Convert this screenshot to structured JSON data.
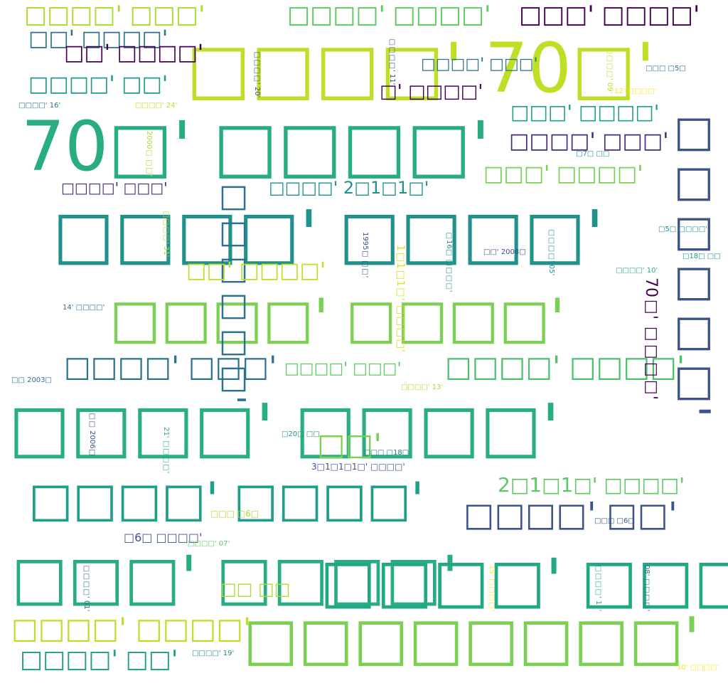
{
  "palette": {
    "background": "#ffffff",
    "colors": [
      "#440154",
      "#3b528b",
      "#21918c",
      "#2c728e",
      "#27ad81",
      "#5ec962",
      "#addc30",
      "#bddf26",
      "#fde725"
    ]
  },
  "words": [
    {
      "text": "□□□□' 70□'",
      "color": "#bddf26"
    },
    {
      "text": "70□' □□□□'",
      "color": "#27ad81"
    },
    {
      "text": "□□□□' □□□□'",
      "color": "#5ec962"
    },
    {
      "text": "□□□□□□□□'",
      "color": "#7ad151"
    },
    {
      "text": "□□□□' □□□□'",
      "color": "#21918c"
    },
    {
      "text": "□□□□' □□□□'",
      "color": "#28ae80"
    },
    {
      "text": "□□□□' □□□□'",
      "color": "#1f9e89"
    },
    {
      "text": "□□□' □□□□'",
      "color": "#27ad81"
    },
    {
      "text": "□□□□' □□□□'",
      "color": "#22a884"
    },
    {
      "text": "□□□' □□□□'",
      "color": "#440154"
    },
    {
      "text": "□□□□□□'",
      "color": "#3b528b"
    },
    {
      "text": "□□□□' □□□'",
      "color": "#addc30"
    },
    {
      "text": "□□□□' □□□□'",
      "color": "#5ec962"
    },
    {
      "text": "□□' □□□□'",
      "color": "#2c728e"
    },
    {
      "text": "□□□□' □□'",
      "color": "#1f9e89"
    },
    {
      "text": "□' □□□□'",
      "color": "#440154"
    },
    {
      "text": "□□□' □□□□'",
      "color": "#1f9e89"
    },
    {
      "text": "□□□□' □□□'",
      "color": "#482878"
    },
    {
      "text": "□□□' □□□□'",
      "color": "#7ad151"
    },
    {
      "text": "□□□□' 2□1□1□'",
      "color": "#21918c"
    },
    {
      "text": "2□1□1□' □□□□'",
      "color": "#5ec962"
    },
    {
      "text": "□□□□' □□'",
      "color": "#3b528b"
    },
    {
      "text": "□□□□' □□□'",
      "color": "#2c728e"
    },
    {
      "text": "□□' □□□□'",
      "color": "#bddf26"
    },
    {
      "text": "□□□□□□'",
      "color": "#2c728e"
    },
    {
      "text": "□□□□' □□□□'",
      "color": "#4ac16d"
    },
    {
      "text": "□□□□' □□□'",
      "color": "#482878"
    },
    {
      "text": "□□' □□□□'",
      "color": "#440154"
    },
    {
      "text": "□□□□' □□□□'",
      "color": "#5ec962"
    },
    {
      "text": "□□'",
      "color": "#7ad151"
    },
    {
      "text": "□□□□' □□'",
      "color": "#1f9e89"
    },
    {
      "text": "□□ □□",
      "color": "#addc30"
    },
    {
      "text": "□□□□' □□□'",
      "color": "#2c728e"
    },
    {
      "text": "□□□□' □□□'",
      "color": "#5ec962"
    },
    {
      "text": "70□' □□□□'",
      "color": "#fde725"
    },
    {
      "text": "1□1□1□' □□□□'",
      "color": "#d8e219"
    },
    {
      "text": "□□□□' 16'",
      "color": "#2c728e"
    },
    {
      "text": "12' □□□□'",
      "color": "#fde725"
    },
    {
      "text": "□□□□' 05'",
      "color": "#21918c"
    },
    {
      "text": "□□' 2008□",
      "color": "#3b528b"
    },
    {
      "text": "□5□ □□□□'",
      "color": "#21918c"
    },
    {
      "text": "□18□ □□",
      "color": "#21918c"
    },
    {
      "text": "□□□□' 10'",
      "color": "#27ad81"
    },
    {
      "text": "□□□□' 13'",
      "color": "#addc30"
    },
    {
      "text": "□□ 2003□",
      "color": "#2c728e"
    },
    {
      "text": "□6□ □□□□'",
      "color": "#3b528b"
    },
    {
      "text": "□□□□' 19'",
      "color": "#21918c"
    },
    {
      "text": "10' □□□□'",
      "color": "#fde725"
    },
    {
      "text": "□□□□' 07'",
      "color": "#5ec962"
    },
    {
      "text": "3□1□1□1□' □□□□'",
      "color": "#3b528b"
    },
    {
      "text": "□□□ □18□",
      "color": "#2c728e"
    },
    {
      "text": "□□ 2006□",
      "color": "#3b528b"
    },
    {
      "text": "21' □□□□'",
      "color": "#27ad81"
    },
    {
      "text": "□□□□' 20'",
      "color": "#3b528b"
    },
    {
      "text": "□20□ □□",
      "color": "#21918c"
    },
    {
      "text": "1995□ □□'",
      "color": "#3b528b"
    },
    {
      "text": "□16□ □□□□'",
      "color": "#21918c"
    },
    {
      "text": "□□□□' 31'",
      "color": "#addc30"
    },
    {
      "text": "2000□ □□'",
      "color": "#addc30"
    },
    {
      "text": "□□□□' 09'",
      "color": "#bddf26"
    },
    {
      "text": "□□□□' 11'",
      "color": "#3b528b"
    },
    {
      "text": "14' □□□□'",
      "color": "#2c728e"
    },
    {
      "text": "□□□ □5□",
      "color": "#2c728e"
    },
    {
      "text": "□7□ □□",
      "color": "#21918c"
    },
    {
      "text": "□□□ □6□",
      "color": "#addc30"
    },
    {
      "text": "□□□□' 01'",
      "color": "#2c728e"
    },
    {
      "text": "08' □□□□'",
      "color": "#2c728e"
    },
    {
      "text": "□□□□' 17'",
      "color": "#27ad81"
    },
    {
      "text": "□□□□' 24'",
      "color": "#bddf26"
    },
    {
      "text": "15' □□□□'",
      "color": "#fde725"
    },
    {
      "text": "□□□ □6□",
      "color": "#3b528b"
    }
  ]
}
